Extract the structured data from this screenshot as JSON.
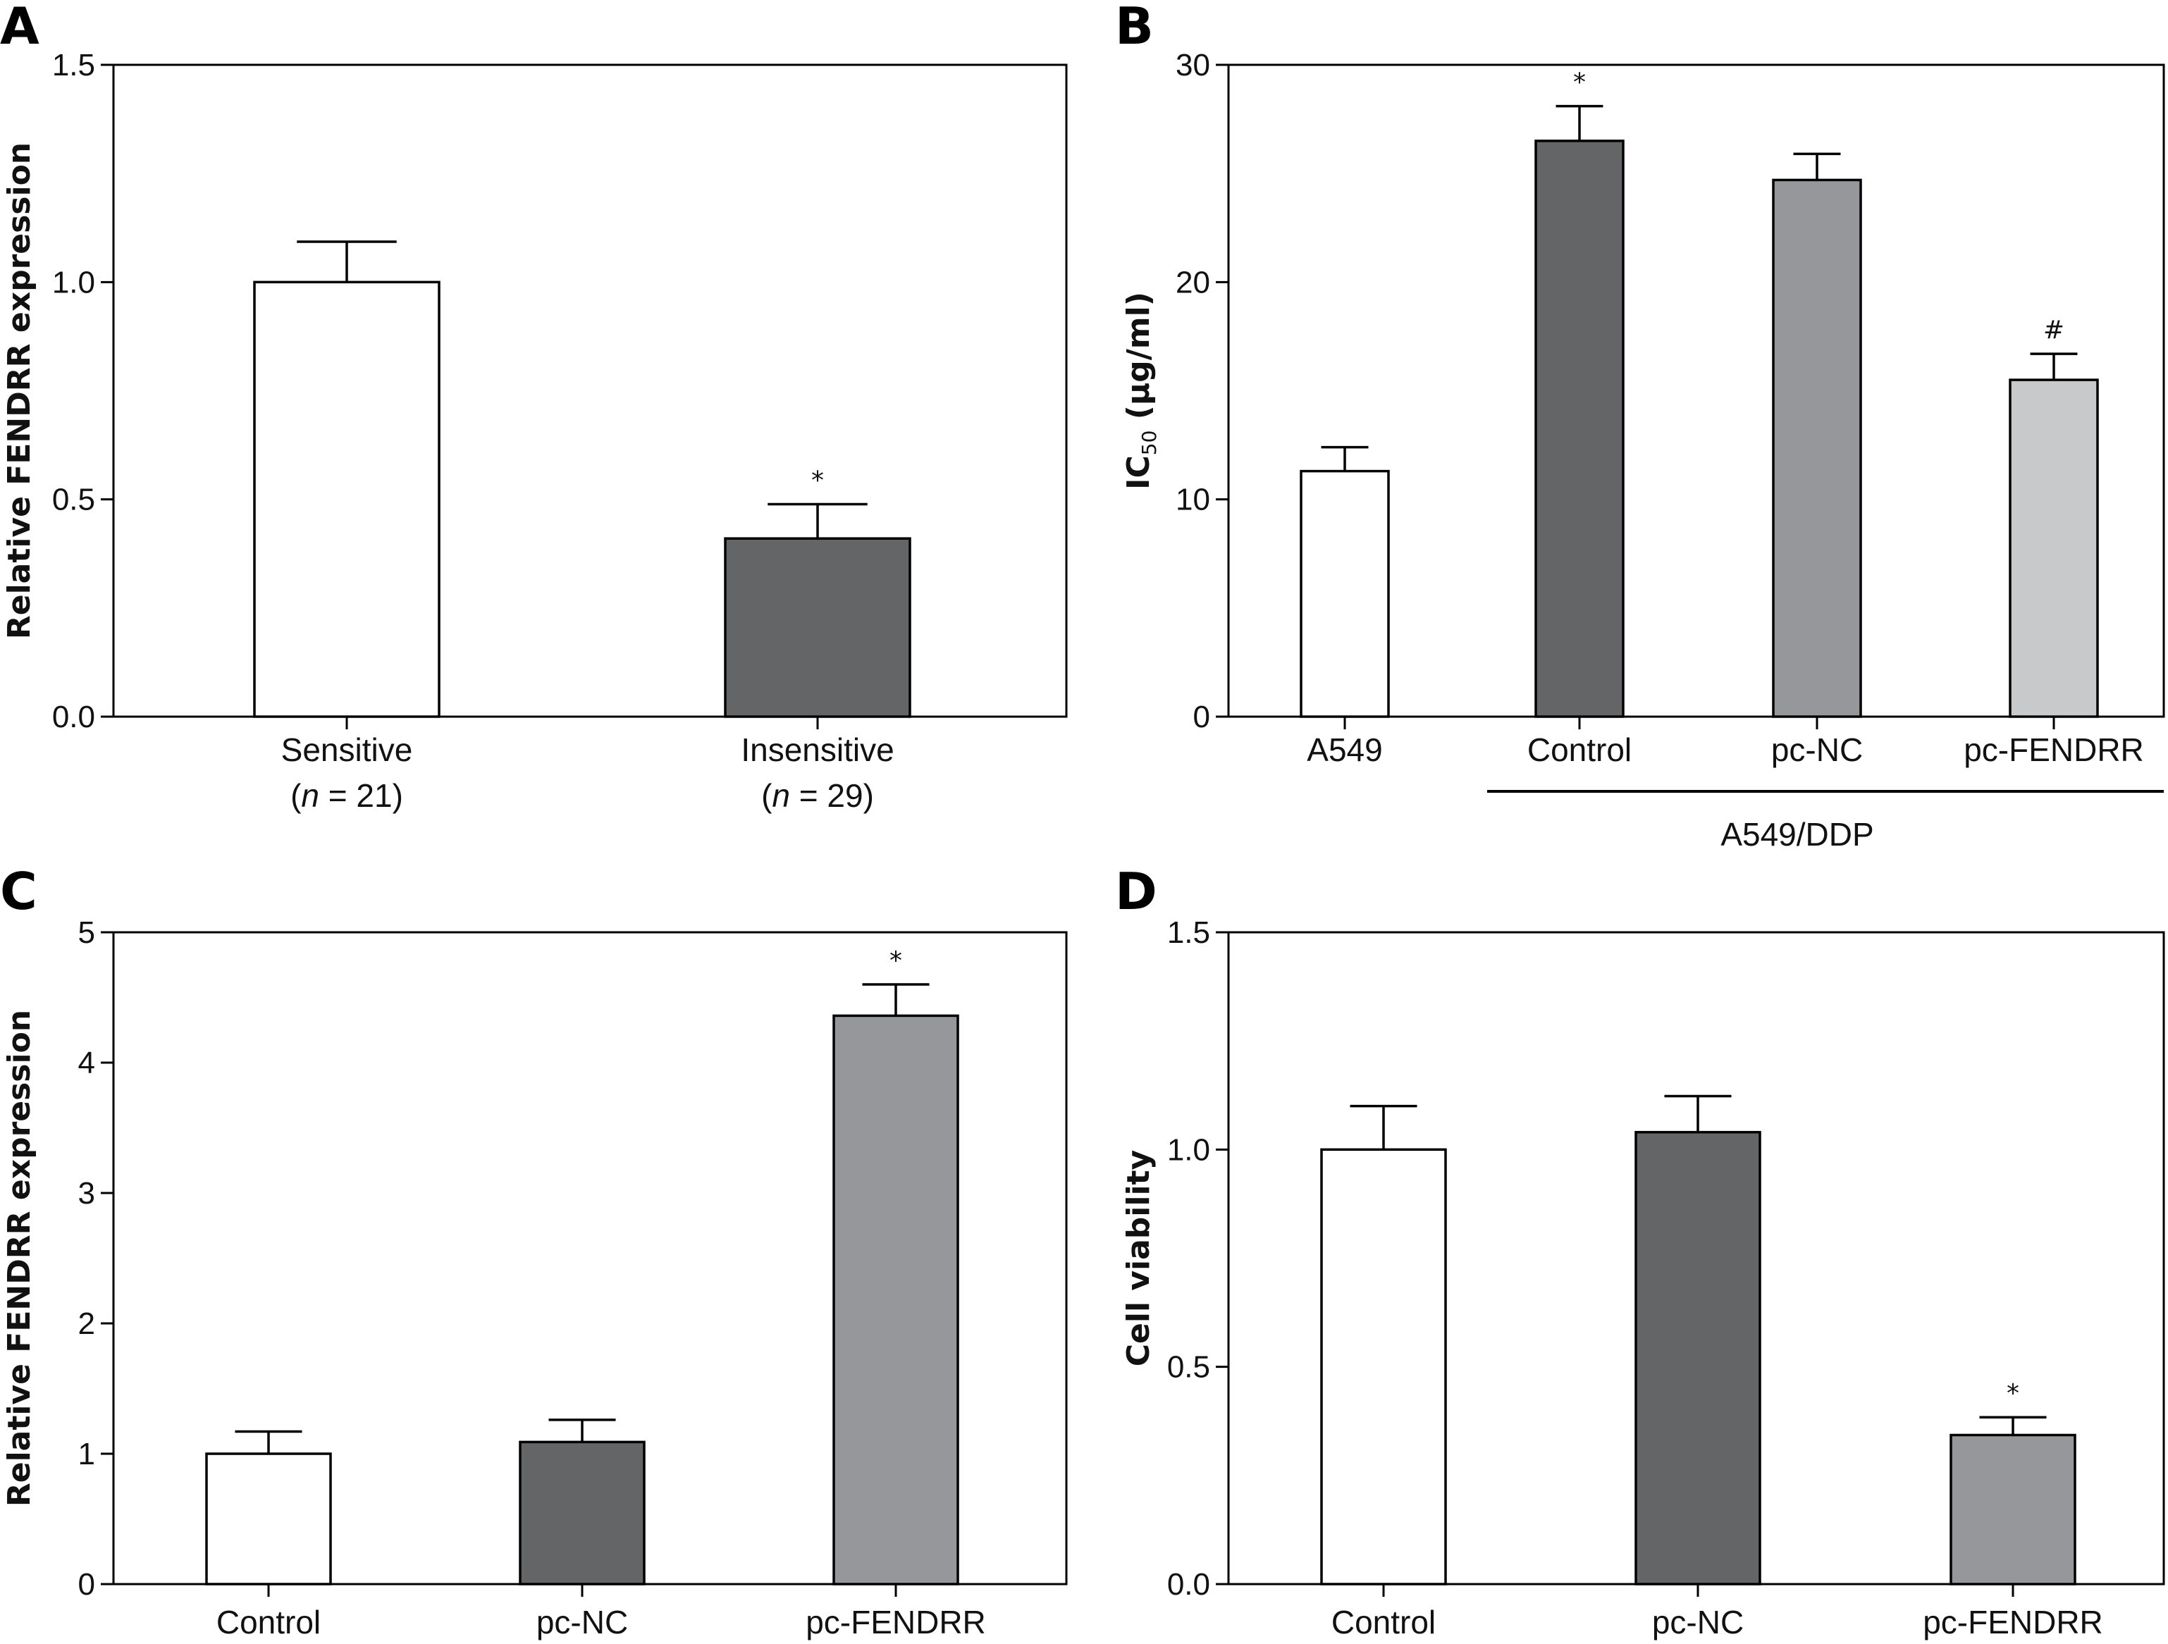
{
  "colors": {
    "white": "#ffffff",
    "dark_gray": "#646567",
    "mid_gray": "#96979a",
    "light_gray": "#c8c9cb",
    "stroke": "#000000"
  },
  "chart_data": [
    {
      "panel": "A",
      "type": "bar",
      "title": "",
      "xlabel": "",
      "ylabel": "Relative FENDRR expression",
      "ylim": [
        0,
        1.5
      ],
      "yticks": [
        0,
        0.5,
        1.0,
        1.5
      ],
      "ytick_labels": [
        "0.0",
        "0.5",
        "1.0",
        "1.5"
      ],
      "categories": [
        "Sensitive",
        "Insensitive"
      ],
      "category_sublabels": [
        "(n = 21)",
        "(n = 29)"
      ],
      "values": [
        1.0,
        0.41
      ],
      "errors": [
        0.093,
        0.079
      ],
      "fills": [
        "white",
        "dark_gray"
      ],
      "annotations": [
        "",
        "*"
      ],
      "grid": false
    },
    {
      "panel": "B",
      "type": "bar",
      "title": "",
      "xlabel": "",
      "ylabel": "IC50 (µg/ml)",
      "ylabel_main": "IC",
      "ylabel_sub": "50",
      "ylabel_unit": "(µg/ml)",
      "ylim": [
        0,
        30
      ],
      "yticks": [
        0,
        10,
        20,
        30
      ],
      "ytick_labels": [
        "0",
        "10",
        "20",
        "30"
      ],
      "categories": [
        "A549",
        "Control",
        "pc-NC",
        "pc-FENDRR"
      ],
      "values": [
        11.3,
        26.5,
        24.7,
        15.5
      ],
      "errors": [
        1.1,
        1.6,
        1.2,
        1.2
      ],
      "fills": [
        "white",
        "dark_gray",
        "mid_gray",
        "light_gray"
      ],
      "annotations": [
        "",
        "*",
        "",
        "#"
      ],
      "group_bracket": {
        "label": "A549/DDP",
        "from": 1,
        "to": 3
      },
      "grid": false
    },
    {
      "panel": "C",
      "type": "bar",
      "title": "",
      "xlabel": "",
      "ylabel": "Relative FENDRR expression",
      "ylim": [
        0,
        5
      ],
      "yticks": [
        0,
        1,
        2,
        3,
        4,
        5
      ],
      "ytick_labels": [
        "0",
        "1",
        "2",
        "3",
        "4",
        "5"
      ],
      "categories": [
        "Control",
        "pc-NC",
        "pc-FENDRR"
      ],
      "values": [
        1.0,
        1.09,
        4.36
      ],
      "errors": [
        0.17,
        0.17,
        0.24
      ],
      "fills": [
        "white",
        "dark_gray",
        "mid_gray"
      ],
      "annotations": [
        "",
        "",
        "*"
      ],
      "grid": false
    },
    {
      "panel": "D",
      "type": "bar",
      "title": "",
      "xlabel": "",
      "ylabel": "Cell viability",
      "ylim": [
        0,
        1.5
      ],
      "yticks": [
        0,
        0.5,
        1.0,
        1.5
      ],
      "ytick_labels": [
        "0.0",
        "0.5",
        "1.0",
        "1.5"
      ],
      "categories": [
        "Control",
        "pc-NC",
        "pc-FENDRR"
      ],
      "values": [
        1.0,
        1.04,
        0.343
      ],
      "errors": [
        0.1,
        0.083,
        0.041
      ],
      "fills": [
        "white",
        "dark_gray",
        "mid_gray"
      ],
      "annotations": [
        "",
        "",
        "*"
      ],
      "grid": false
    }
  ]
}
